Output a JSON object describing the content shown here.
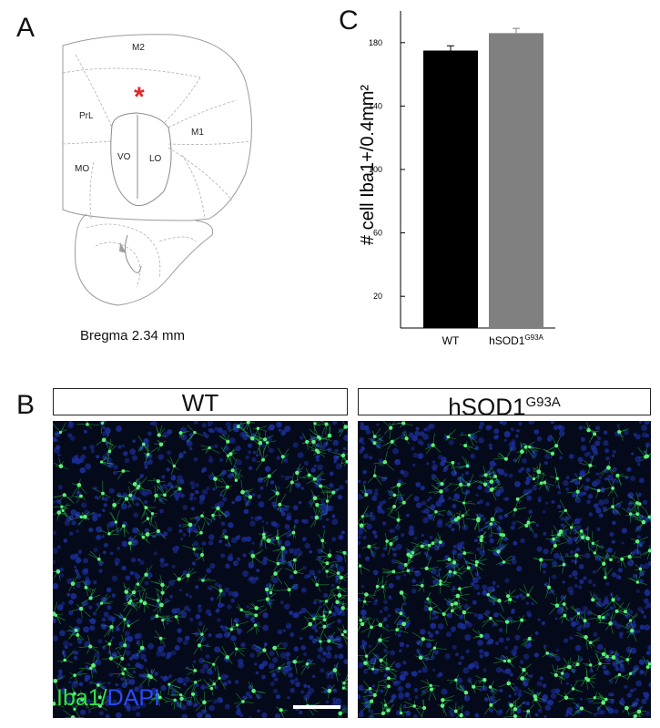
{
  "panels": {
    "a": "A",
    "b": "B",
    "c": "C"
  },
  "atlas": {
    "regions": [
      "M2",
      "PrL",
      "M1",
      "MO",
      "VO",
      "LO"
    ],
    "marker": "*",
    "bregma": "Bregma 2.34 mm",
    "marker_color": "#e3262b"
  },
  "micrographs": {
    "wt_title": "WT",
    "mutant_title_base": "hSOD1",
    "mutant_title_sup": "G93A",
    "stain_green": "Iba1",
    "stain_sep": "/",
    "stain_blue": "DAPI",
    "green_color": "#35e04a",
    "blue_color": "#2a4bff"
  },
  "chart_data": {
    "type": "bar",
    "ylabel": "# cell Iba1+/0.4mm²",
    "ylim": [
      0,
      200
    ],
    "yticks": [
      20,
      60,
      100,
      140,
      180
    ],
    "categories": [
      "WT",
      "hSOD1G93A"
    ],
    "category_labels": [
      {
        "base": "WT",
        "sup": ""
      },
      {
        "base": "hSOD1",
        "sup": "G93A"
      }
    ],
    "values": [
      175,
      186
    ],
    "errors": [
      3,
      3
    ],
    "colors": [
      "#000000",
      "#808080"
    ]
  }
}
